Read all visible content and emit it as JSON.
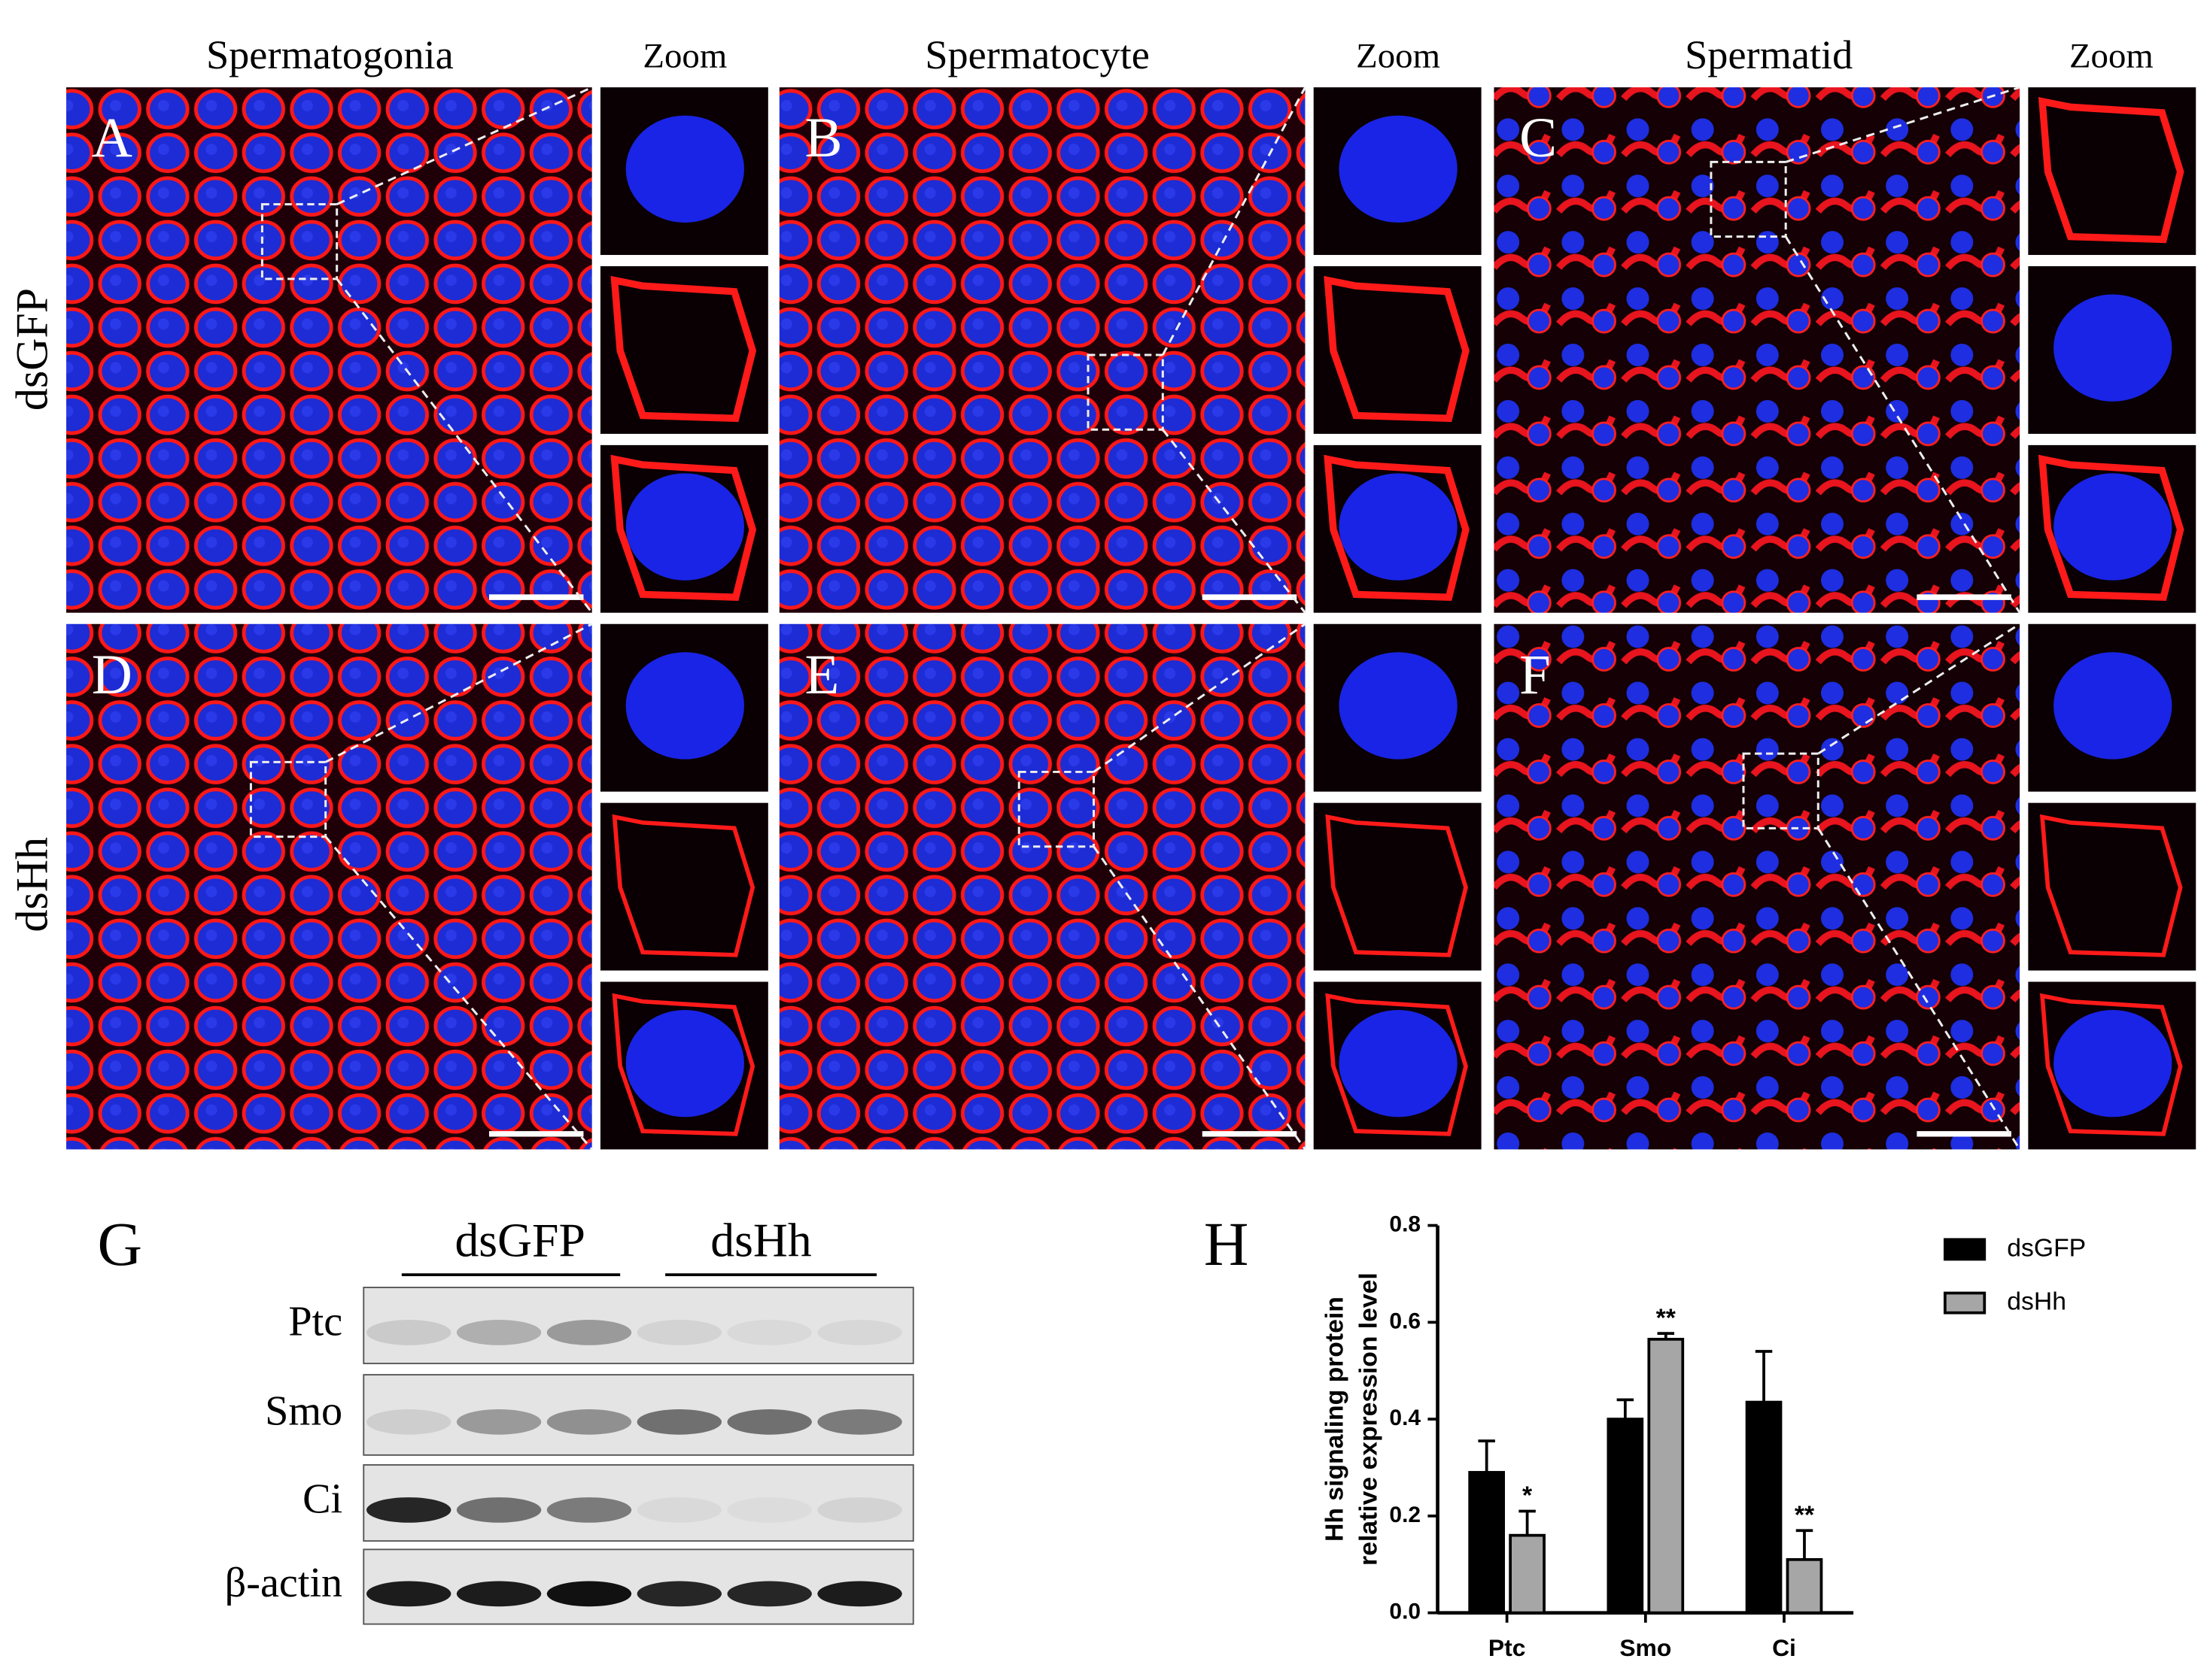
{
  "figure": {
    "column_headers": [
      "Spermatogonia",
      "Spermatocyte",
      "Spermatid"
    ],
    "zoom_labels": [
      "Zoom",
      "Zoom",
      "Zoom"
    ],
    "row_labels": [
      "dsGFP",
      "dsHh"
    ],
    "panel_letters": [
      "A",
      "B",
      "C",
      "D",
      "E",
      "F"
    ],
    "blot": {
      "letter": "G",
      "groups": [
        "dsGFP",
        "dsHh"
      ],
      "rows": [
        "Ptc",
        "Smo",
        "Ci",
        "β-actin"
      ]
    },
    "chart_letter": "H"
  },
  "chart_data": {
    "type": "bar",
    "ylabel": [
      "Hh signaling protein",
      "relative expression level"
    ],
    "categories": [
      "Ptc",
      "Smo",
      "Ci"
    ],
    "series": [
      {
        "name": "dsGFP",
        "color": "#000000",
        "values": [
          0.29,
          0.4,
          0.435
        ],
        "errors": [
          0.065,
          0.04,
          0.105
        ]
      },
      {
        "name": "dsHh",
        "color": "#a6a6a6",
        "values": [
          0.16,
          0.565,
          0.11
        ],
        "errors": [
          0.05,
          0.012,
          0.06
        ],
        "significance": [
          "*",
          "**",
          "**"
        ]
      }
    ],
    "ylim": [
      0,
      0.8
    ],
    "yticks": [
      {
        "value": 0,
        "label": "0.0"
      },
      0.2,
      0.4,
      0.6,
      0.8
    ],
    "legend": "upper right"
  }
}
